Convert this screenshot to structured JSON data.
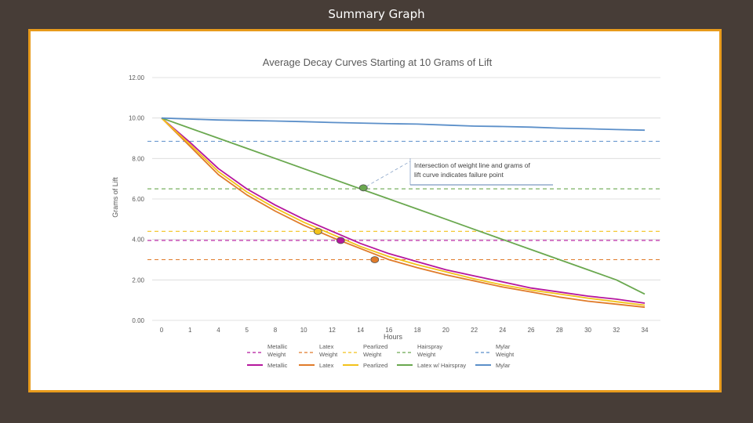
{
  "slide": {
    "title": "Summary Graph"
  },
  "colors": {
    "background": "#473d37",
    "frame": "#e89b1c",
    "metallic": "#b5179e",
    "latex": "#e07b2a",
    "pearlized": "#f2c21b",
    "hairspray": "#6aa84f",
    "mylar": "#5b8fc9",
    "grid": "#d9d9d9",
    "text": "#595959"
  },
  "chart_data": {
    "type": "line",
    "title": "Average Decay Curves Starting at 10 Grams of Lift",
    "xlabel": "Hours",
    "ylabel": "Grams of Lift",
    "ylim": [
      0,
      12
    ],
    "y_ticks": [
      "0.00",
      "2.00",
      "4.00",
      "6.00",
      "8.00",
      "10.00",
      "12.00"
    ],
    "x_ticks": [
      "0",
      "1",
      "4",
      "5",
      "8",
      "10",
      "12",
      "14",
      "16",
      "18",
      "20",
      "22",
      "24",
      "26",
      "28",
      "30",
      "32",
      "34"
    ],
    "grid": "horizontal",
    "legend_position": "bottom",
    "series": [
      {
        "name": "Metallic",
        "key": "metallic",
        "values": [
          10,
          8.8,
          7.5,
          6.5,
          5.7,
          5.0,
          4.4,
          3.8,
          3.3,
          2.9,
          2.5,
          2.2,
          1.9,
          1.6,
          1.4,
          1.2,
          1.05,
          0.85
        ]
      },
      {
        "name": "Latex",
        "key": "latex",
        "values": [
          10,
          8.6,
          7.2,
          6.2,
          5.4,
          4.7,
          4.1,
          3.55,
          3.0,
          2.6,
          2.25,
          1.95,
          1.65,
          1.4,
          1.15,
          0.95,
          0.8,
          0.65
        ]
      },
      {
        "name": "Pearlized",
        "key": "pearlized",
        "values": [
          10,
          8.7,
          7.35,
          6.35,
          5.55,
          4.85,
          4.25,
          3.65,
          3.15,
          2.75,
          2.4,
          2.05,
          1.75,
          1.5,
          1.3,
          1.1,
          0.92,
          0.75
        ]
      },
      {
        "name": "Latex w/ Hairspray",
        "key": "hairspray",
        "values": [
          10,
          9.5,
          9.0,
          8.5,
          8.0,
          7.5,
          7.0,
          6.5,
          6.0,
          5.5,
          5.0,
          4.5,
          4.0,
          3.5,
          3.0,
          2.5,
          2.0,
          1.3
        ]
      },
      {
        "name": "Mylar",
        "key": "mylar",
        "values": [
          10,
          9.95,
          9.9,
          9.88,
          9.85,
          9.82,
          9.78,
          9.75,
          9.72,
          9.7,
          9.65,
          9.6,
          9.58,
          9.55,
          9.5,
          9.47,
          9.43,
          9.4
        ]
      }
    ],
    "weight_lines": [
      {
        "name": "Metallic Weight",
        "key": "metallic",
        "value": 3.95
      },
      {
        "name": "Latex Weight",
        "key": "latex",
        "value": 3.0
      },
      {
        "name": "Pearlized Weight",
        "key": "pearlized",
        "value": 4.4
      },
      {
        "name": "Hairspray Weight",
        "key": "hairspray",
        "value": 6.5
      },
      {
        "name": "Mylar Weight",
        "key": "mylar",
        "value": 8.85
      }
    ],
    "failure_points": [
      {
        "key": "hairspray",
        "x_index": 7.1,
        "value": 6.55
      },
      {
        "key": "pearlized",
        "x_index": 5.5,
        "value": 4.4
      },
      {
        "key": "metallic",
        "x_index": 6.3,
        "value": 3.95
      },
      {
        "key": "latex",
        "x_index": 7.5,
        "value": 3.0
      }
    ],
    "annotation": {
      "lines": [
        "Intersection of weight line and grams of",
        "lift curve indicates failure point"
      ],
      "target": "hairspray"
    }
  }
}
